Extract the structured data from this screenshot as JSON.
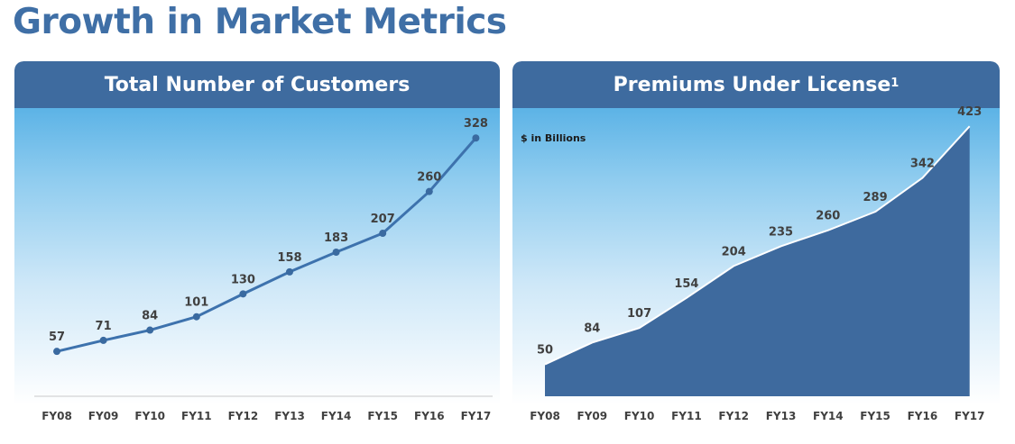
{
  "page": {
    "title": "Growth in Market Metrics"
  },
  "chart_data": [
    {
      "type": "line",
      "title": "Total Number of Customers",
      "categories": [
        "FY08",
        "FY09",
        "FY10",
        "FY11",
        "FY12",
        "FY13",
        "FY14",
        "FY15",
        "FY16",
        "FY17"
      ],
      "values": [
        57,
        71,
        84,
        101,
        130,
        158,
        183,
        207,
        260,
        328
      ],
      "data_labels": [
        "57",
        "71",
        "84",
        "101",
        "130",
        "158",
        "183",
        "207",
        "260",
        "328"
      ],
      "ylim": [
        0,
        350
      ],
      "grid": false,
      "line_color": "#3d72ad"
    },
    {
      "type": "area",
      "title": "Premiums Under License",
      "title_superscript": "1",
      "unit_label": "$ in Billions",
      "categories": [
        "FY08",
        "FY09",
        "FY10",
        "FY11",
        "FY12",
        "FY13",
        "FY14",
        "FY15",
        "FY16",
        "FY17"
      ],
      "values": [
        50,
        84,
        107,
        154,
        204,
        235,
        260,
        289,
        342,
        423
      ],
      "data_labels": [
        "50",
        "84",
        "107",
        "154",
        "204",
        "235",
        "260",
        "289",
        "342",
        "423"
      ],
      "ylim": [
        0,
        450
      ],
      "grid": false,
      "fill_color": "#3e6a9e"
    }
  ]
}
